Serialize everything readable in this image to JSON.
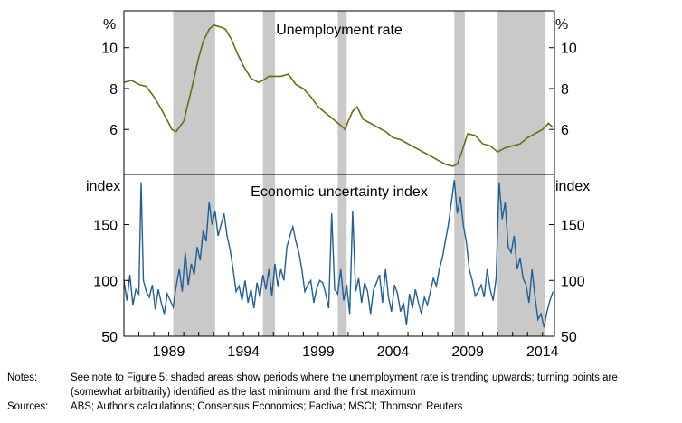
{
  "chart_data": [
    {
      "type": "line",
      "title": "Unemployment rate",
      "y_unit_left": "%",
      "y_unit_right": "%",
      "ylim": [
        3.8,
        11.8
      ],
      "yticks": [
        6,
        8,
        10
      ],
      "x_range": [
        1986.0,
        2014.8
      ],
      "color": "#6e6a14",
      "series": [
        {
          "x": [
            1986.0,
            1986.5,
            1987.0,
            1987.5,
            1988.0,
            1988.5,
            1989.0,
            1989.2,
            1989.5,
            1990.0,
            1990.5,
            1991.0,
            1991.3,
            1991.7,
            1992.0,
            1992.5,
            1992.8,
            1993.2,
            1993.6,
            1994.0,
            1994.5,
            1995.0,
            1995.3,
            1995.7,
            1996.0,
            1996.5,
            1997.0,
            1997.5,
            1998.0,
            1998.5,
            1999.0,
            1999.5,
            2000.0,
            2000.5,
            2000.8,
            2001.0,
            2001.3,
            2001.6,
            2002.0,
            2002.5,
            2003.0,
            2003.5,
            2004.0,
            2004.5,
            2005.0,
            2005.5,
            2006.0,
            2006.5,
            2007.0,
            2007.5,
            2008.0,
            2008.3,
            2008.6,
            2009.0,
            2009.5,
            2010.0,
            2010.5,
            2011.0,
            2011.5,
            2012.0,
            2012.5,
            2013.0,
            2013.5,
            2014.0,
            2014.4,
            2014.7
          ],
          "values": [
            8.3,
            8.4,
            8.2,
            8.1,
            7.6,
            7.0,
            6.3,
            6.0,
            5.9,
            6.4,
            7.9,
            9.5,
            10.3,
            10.9,
            11.1,
            11.0,
            10.9,
            10.4,
            9.7,
            9.1,
            8.5,
            8.3,
            8.4,
            8.6,
            8.6,
            8.6,
            8.7,
            8.2,
            8.0,
            7.6,
            7.1,
            6.8,
            6.5,
            6.2,
            6.0,
            6.4,
            6.9,
            7.1,
            6.5,
            6.3,
            6.1,
            5.9,
            5.6,
            5.5,
            5.3,
            5.1,
            4.9,
            4.7,
            4.5,
            4.3,
            4.2,
            4.3,
            4.9,
            5.8,
            5.7,
            5.3,
            5.2,
            4.9,
            5.1,
            5.2,
            5.3,
            5.6,
            5.8,
            6.0,
            6.3,
            6.1
          ]
        }
      ]
    },
    {
      "type": "line",
      "title": "Economic uncertainty index",
      "y_unit_left": "index",
      "y_unit_right": "index",
      "ylim": [
        50,
        195
      ],
      "yticks": [
        50,
        100,
        150
      ],
      "x_range": [
        1986.0,
        2014.8
      ],
      "xticks": [
        1989,
        1994,
        1999,
        2004,
        2009,
        2014
      ],
      "color": "#1f5f96",
      "series": [
        {
          "x": [
            1986.0,
            1986.2,
            1986.4,
            1986.6,
            1986.8,
            1987.0,
            1987.15,
            1987.3,
            1987.5,
            1987.7,
            1987.9,
            1988.1,
            1988.3,
            1988.5,
            1988.7,
            1988.9,
            1989.1,
            1989.3,
            1989.5,
            1989.7,
            1989.9,
            1990.1,
            1990.3,
            1990.5,
            1990.7,
            1990.9,
            1991.1,
            1991.3,
            1991.5,
            1991.7,
            1991.9,
            1992.1,
            1992.3,
            1992.5,
            1992.7,
            1992.9,
            1993.1,
            1993.3,
            1993.5,
            1993.7,
            1993.9,
            1994.1,
            1994.3,
            1994.5,
            1994.7,
            1994.9,
            1995.1,
            1995.3,
            1995.5,
            1995.7,
            1995.9,
            1996.1,
            1996.3,
            1996.5,
            1996.7,
            1996.9,
            1997.1,
            1997.3,
            1997.5,
            1997.7,
            1997.9,
            1998.1,
            1998.3,
            1998.5,
            1998.7,
            1998.9,
            1999.1,
            1999.3,
            1999.5,
            1999.7,
            1999.9,
            2000.1,
            2000.3,
            2000.5,
            2000.7,
            2000.9,
            2001.1,
            2001.3,
            2001.5,
            2001.7,
            2001.9,
            2002.1,
            2002.3,
            2002.5,
            2002.7,
            2002.9,
            2003.1,
            2003.3,
            2003.5,
            2003.7,
            2003.9,
            2004.1,
            2004.3,
            2004.5,
            2004.7,
            2004.9,
            2005.1,
            2005.3,
            2005.5,
            2005.7,
            2005.9,
            2006.1,
            2006.3,
            2006.5,
            2006.7,
            2006.9,
            2007.1,
            2007.3,
            2007.5,
            2007.7,
            2007.9,
            2008.1,
            2008.3,
            2008.5,
            2008.7,
            2008.9,
            2009.1,
            2009.3,
            2009.5,
            2009.7,
            2009.9,
            2010.1,
            2010.3,
            2010.5,
            2010.7,
            2010.9,
            2011.1,
            2011.3,
            2011.5,
            2011.7,
            2011.9,
            2012.1,
            2012.3,
            2012.5,
            2012.7,
            2012.9,
            2013.1,
            2013.3,
            2013.5,
            2013.7,
            2013.9,
            2014.1,
            2014.3,
            2014.5,
            2014.7
          ],
          "values": [
            100,
            82,
            105,
            78,
            92,
            88,
            188,
            100,
            90,
            85,
            96,
            74,
            92,
            80,
            70,
            88,
            82,
            76,
            95,
            110,
            90,
            125,
            96,
            115,
            105,
            130,
            118,
            145,
            135,
            170,
            150,
            162,
            140,
            150,
            160,
            140,
            128,
            110,
            90,
            95,
            82,
            100,
            80,
            92,
            75,
            98,
            85,
            105,
            92,
            110,
            86,
            115,
            95,
            110,
            100,
            130,
            140,
            148,
            135,
            125,
            110,
            90,
            96,
            100,
            80,
            93,
            100,
            98,
            88,
            75,
            160,
            92,
            88,
            110,
            82,
            96,
            70,
            162,
            90,
            102,
            80,
            98,
            90,
            70,
            92,
            98,
            105,
            80,
            110,
            85,
            72,
            96,
            88,
            72,
            80,
            60,
            88,
            75,
            92,
            80,
            70,
            85,
            78,
            90,
            102,
            95,
            110,
            120,
            135,
            150,
            170,
            190,
            160,
            175,
            150,
            135,
            110,
            100,
            86,
            90,
            96,
            85,
            110,
            92,
            82,
            102,
            188,
            155,
            170,
            130,
            125,
            140,
            110,
            120,
            102,
            96,
            80,
            110,
            85,
            65,
            70,
            58,
            72,
            82,
            90
          ]
        }
      ]
    }
  ],
  "shading": {
    "color": "#c9c9c9",
    "periods": [
      [
        1989.3,
        1992.1
      ],
      [
        1995.3,
        1996.1
      ],
      [
        2000.3,
        2000.9
      ],
      [
        2008.1,
        2008.8
      ],
      [
        2011.0,
        2014.2
      ]
    ]
  },
  "notes": {
    "notes_label": "Notes:",
    "notes_text_1": "See note to Figure 5; shaded areas show periods where the unemployment rate is trending upwards; turning points are",
    "notes_text_2": "(somewhat arbitrarily) identified as the last minimum and the first maximum",
    "sources_label": "Sources:",
    "sources_text": "ABS; Author's calculations; Consensus Economics; Factiva; MSCI; Thomson Reuters"
  }
}
